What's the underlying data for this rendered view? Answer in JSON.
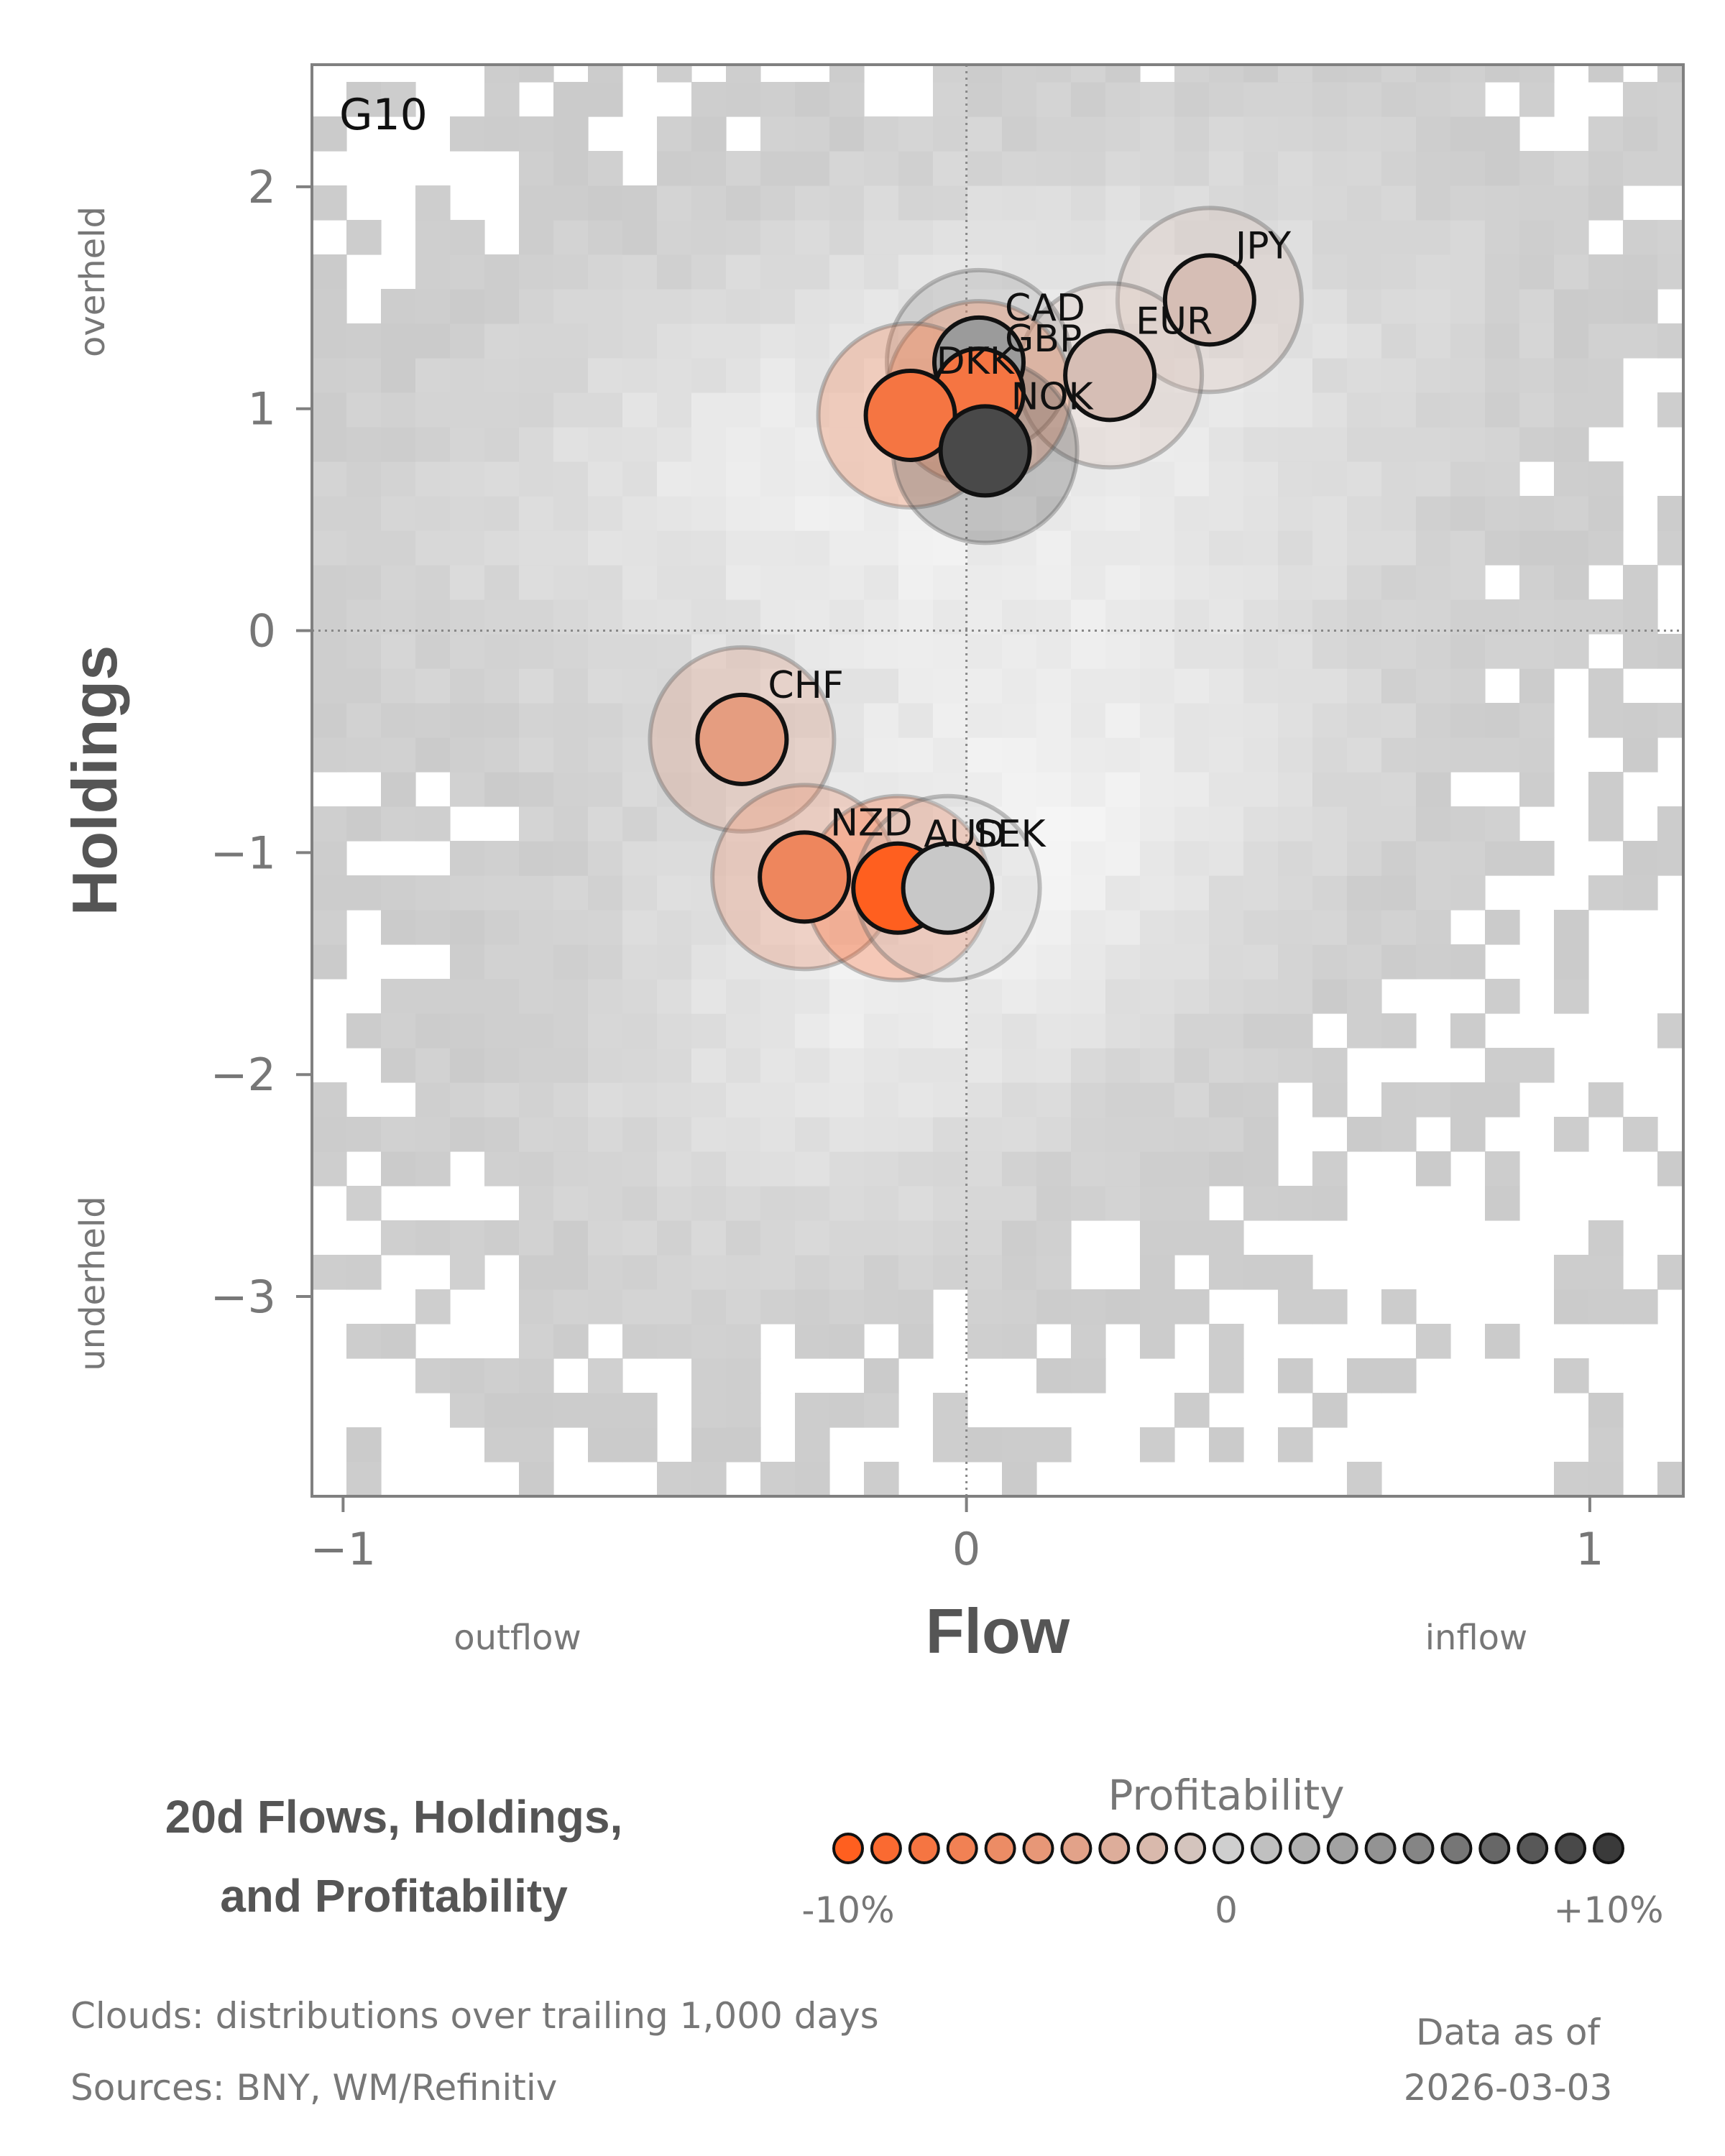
{
  "chart_data": {
    "type": "scatter",
    "title": "20d Flows, Holdings, and Profitability",
    "title_lines": [
      "20d Flows, Holdings,",
      "and Profitability"
    ],
    "panel_label": "G10",
    "xlabel": "Flow",
    "ylabel": "Holdings",
    "xlim": [
      -1.05,
      1.15
    ],
    "ylim": [
      -3.9,
      2.55
    ],
    "xticks": [
      -1,
      0,
      1
    ],
    "yticks": [
      -3,
      -2,
      -1,
      0,
      1,
      2
    ],
    "xtick_labels": [
      "−1",
      "0",
      "1"
    ],
    "ytick_labels": [
      "−3",
      "−2",
      "−1",
      "0",
      "1",
      "2"
    ],
    "x_notes": {
      "left": "outflow",
      "right": "inflow"
    },
    "y_notes": {
      "top": "overheld",
      "bottom": "underheld"
    },
    "reference_lines": {
      "x": 0,
      "y": 0,
      "style": "dotted"
    },
    "points": [
      {
        "label": "JPY",
        "x": 0.39,
        "y": 1.49,
        "profit": -1.5
      },
      {
        "label": "EUR",
        "x": 0.23,
        "y": 1.15,
        "profit": -1.5
      },
      {
        "label": "CAD",
        "x": 0.02,
        "y": 1.21,
        "profit": 3.5
      },
      {
        "label": "GBP",
        "x": 0.02,
        "y": 1.07,
        "profit": -8.0
      },
      {
        "label": "DKK",
        "x": -0.09,
        "y": 0.97,
        "profit": -8.0
      },
      {
        "label": "NOK",
        "x": 0.03,
        "y": 0.81,
        "profit": 9.0
      },
      {
        "label": "CHF",
        "x": -0.36,
        "y": -0.49,
        "profit": -4.5
      },
      {
        "label": "NZD",
        "x": -0.26,
        "y": -1.11,
        "profit": -6.5
      },
      {
        "label": "AUD",
        "x": -0.11,
        "y": -1.16,
        "profit": -10.0
      },
      {
        "label": "SEK",
        "x": -0.03,
        "y": -1.16,
        "profit": 0.5
      }
    ],
    "colorbar": {
      "title": "Profitability",
      "min": -10,
      "max": 10,
      "tick_labels": [
        "-10%",
        "0",
        "+10%"
      ],
      "low_color": "#ff5f1f",
      "mid_color": "#cfcfcf",
      "high_color": "#3a3a3a"
    },
    "background": "2D density clouds: distributions over trailing 1,000 days"
  },
  "footnotes": {
    "clouds": "Clouds:  distributions over trailing 1,000 days",
    "sources": "Sources:  BNY, WM/Refinitiv",
    "data_as_of_label": "Data as of",
    "data_as_of_date": "2026-03-03"
  },
  "colors": {
    "axis": "#808080",
    "text_muted": "#777777",
    "title": "#555555",
    "cloud": "#cccccc"
  }
}
